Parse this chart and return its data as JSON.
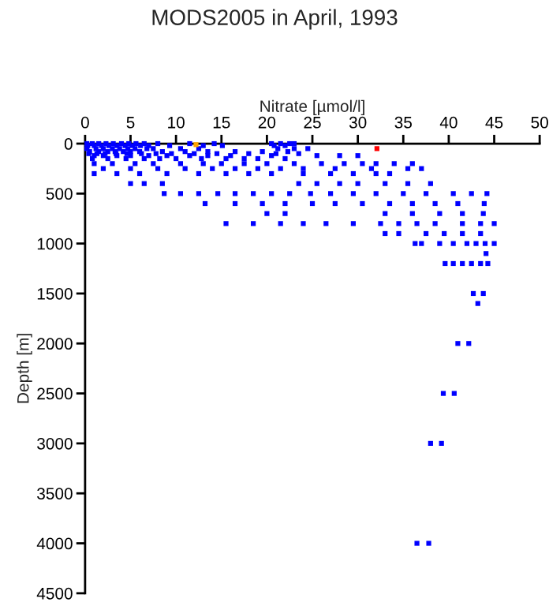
{
  "chart_data": {
    "type": "scatter",
    "title": "MODS2005 in April, 1993",
    "xlabel": "Nitrate [µmol/l]",
    "ylabel": "Depth [m]",
    "xlim": [
      0,
      50
    ],
    "xticks": [
      0,
      5,
      10,
      15,
      20,
      25,
      30,
      35,
      40,
      45,
      50
    ],
    "ylim": [
      4500,
      0
    ],
    "yticks": [
      0,
      500,
      1000,
      1500,
      2000,
      2500,
      3000,
      3500,
      4000,
      4500
    ],
    "grid": false,
    "marker": "square",
    "series": [
      {
        "color": "#0000ff",
        "x": [
          0.2,
          0.8,
          1.5,
          2.3,
          3.1,
          4.0,
          4.8,
          5.6,
          6.5,
          8.0,
          11.5,
          14.2,
          20.5,
          21.5,
          22.5,
          23.0,
          0.3,
          1.0,
          1.8,
          2.6,
          3.5,
          4.4,
          5.2,
          6.1,
          7.0,
          9.3,
          13.0,
          15.1,
          20.8,
          22.0,
          0.2,
          1.2,
          2.0,
          3.0,
          3.8,
          4.7,
          5.5,
          6.8,
          7.5,
          10.5,
          12.5,
          21.2,
          23.0,
          24.5,
          0.5,
          1.5,
          2.5,
          3.3,
          4.2,
          5.0,
          6.0,
          8.5,
          11.0,
          13.5,
          16.5,
          19.5,
          22.3,
          0.4,
          1.3,
          2.2,
          3.4,
          4.6,
          6.2,
          7.8,
          9.5,
          12.0,
          14.5,
          18.0,
          21.0,
          23.5,
          1.0,
          2.0,
          3.5,
          5.0,
          7.0,
          9.0,
          11.5,
          13.5,
          16.0,
          20.5,
          25.5,
          28.0,
          30.0,
          0.8,
          2.5,
          4.5,
          6.5,
          8.2,
          10.0,
          12.8,
          15.5,
          17.5,
          19.0,
          22.0,
          1.0,
          3.0,
          5.5,
          7.5,
          10.5,
          13.0,
          15.0,
          17.5,
          20.0,
          23.0,
          26.0,
          28.5,
          30.5,
          32.0,
          34.0,
          36.0,
          2.0,
          5.0,
          8.0,
          11.0,
          14.0,
          16.5,
          19.0,
          21.5,
          24.0,
          27.5,
          31.5,
          35.5,
          37.0,
          1.0,
          3.5,
          6.0,
          9.0,
          12.5,
          15.5,
          18.0,
          20.5,
          24.0,
          27.0,
          29.5,
          32.0,
          33.5,
          5.0,
          6.5,
          8.5,
          23.5,
          25.5,
          28.0,
          30.0,
          33.0,
          35.5,
          38.0,
          8.7,
          10.5,
          12.5,
          14.6,
          16.5,
          18.5,
          20.5,
          22.5,
          24.8,
          27.0,
          29.5,
          32.0,
          35.0,
          37.5,
          40.5,
          42.5,
          44.2,
          13.2,
          16.5,
          19.5,
          22.0,
          25.0,
          27.5,
          30.5,
          33.5,
          36.0,
          38.5,
          41.0,
          43.9,
          20.0,
          22.0,
          33.0,
          36.0,
          39.0,
          41.5,
          43.8,
          15.5,
          18.5,
          21.5,
          24.0,
          26.5,
          29.5,
          32.5,
          34.5,
          36.5,
          38.5,
          41.5,
          43.5,
          45.0,
          33.0,
          34.5,
          37.5,
          39.5,
          41.5,
          43.5,
          36.3,
          37.0,
          39.0,
          40.5,
          42.0,
          43.0,
          44.0,
          45.0,
          44.1,
          39.6,
          40.5,
          41.5,
          42.5,
          43.5,
          44.3,
          42.7,
          43.8,
          43.2,
          41.0,
          42.2,
          39.4,
          40.6,
          38.0,
          39.2,
          36.5,
          37.8
        ],
        "values": [
          0,
          0,
          0,
          0,
          0,
          0,
          0,
          0,
          0,
          0,
          0,
          0,
          0,
          0,
          0,
          0,
          20,
          20,
          20,
          20,
          20,
          20,
          20,
          20,
          20,
          20,
          20,
          20,
          20,
          20,
          50,
          50,
          50,
          50,
          50,
          50,
          50,
          50,
          50,
          50,
          50,
          50,
          50,
          50,
          80,
          80,
          80,
          80,
          80,
          80,
          80,
          80,
          80,
          80,
          80,
          80,
          80,
          100,
          100,
          100,
          100,
          100,
          100,
          100,
          100,
          100,
          100,
          100,
          100,
          100,
          120,
          120,
          120,
          120,
          120,
          120,
          120,
          120,
          120,
          120,
          120,
          120,
          120,
          150,
          150,
          150,
          150,
          150,
          150,
          150,
          150,
          150,
          150,
          150,
          200,
          200,
          200,
          200,
          200,
          200,
          200,
          200,
          200,
          200,
          200,
          200,
          200,
          200,
          200,
          200,
          250,
          250,
          250,
          250,
          250,
          250,
          250,
          250,
          250,
          250,
          250,
          250,
          250,
          300,
          300,
          300,
          300,
          300,
          300,
          300,
          300,
          300,
          300,
          300,
          300,
          300,
          400,
          400,
          400,
          400,
          400,
          400,
          400,
          400,
          400,
          400,
          500,
          500,
          500,
          500,
          500,
          500,
          500,
          500,
          500,
          500,
          500,
          500,
          500,
          500,
          500,
          500,
          500,
          600,
          600,
          600,
          600,
          600,
          600,
          600,
          600,
          600,
          600,
          600,
          600,
          700,
          700,
          700,
          700,
          700,
          700,
          700,
          800,
          800,
          800,
          800,
          800,
          800,
          800,
          800,
          800,
          800,
          800,
          800,
          800,
          900,
          900,
          900,
          900,
          900,
          900,
          1000,
          1000,
          1000,
          1000,
          1000,
          1000,
          1000,
          1000,
          1100,
          1200,
          1200,
          1200,
          1200,
          1200,
          1200,
          1500,
          1500,
          1600,
          2000,
          2000,
          2500,
          2500,
          3000,
          3000,
          4000,
          4000
        ]
      },
      {
        "color": "#ffa500",
        "x": [
          12.2
        ],
        "values": [
          10
        ]
      },
      {
        "color": "#ff0000",
        "x": [
          32.1
        ],
        "values": [
          50
        ]
      }
    ]
  }
}
